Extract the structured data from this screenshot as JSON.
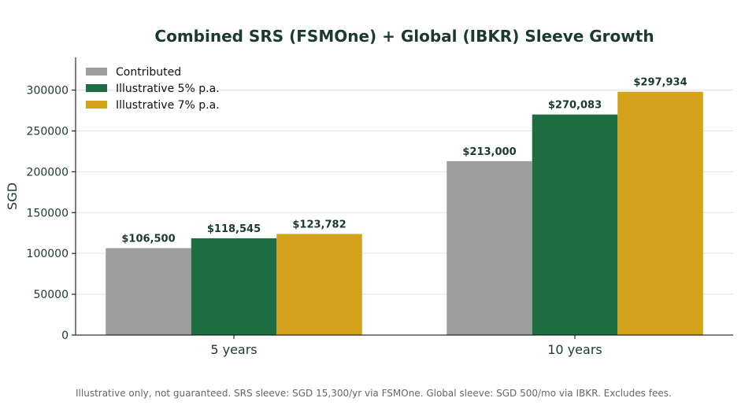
{
  "chart_data": {
    "type": "bar",
    "title": "Combined SRS (FSMOne) + Global (IBKR) Sleeve Growth",
    "xlabel": "",
    "ylabel": "SGD",
    "categories": [
      "5 years",
      "10 years"
    ],
    "ylim": [
      0,
      340000
    ],
    "yticks": [
      0,
      50000,
      100000,
      150000,
      200000,
      250000,
      300000
    ],
    "grid": "horizontal",
    "legend_position": "top-left",
    "series": [
      {
        "name": "Contributed",
        "color": "#9e9e9e",
        "values": [
          106500,
          213000
        ],
        "labels": [
          "$106,500",
          "$213,000"
        ]
      },
      {
        "name": "Illustrative 5% p.a.",
        "color": "#1f6e43",
        "values": [
          118545,
          270083
        ],
        "labels": [
          "$118,545",
          "$270,083"
        ]
      },
      {
        "name": "Illustrative 7% p.a.",
        "color": "#d4a11a",
        "values": [
          123782,
          297934
        ],
        "labels": [
          "$123,782",
          "$297,934"
        ]
      }
    ]
  },
  "footnote": "Illustrative only, not guaranteed. SRS sleeve: SGD 15,300/yr via FSMOne. Global sleeve: SGD 500/mo via IBKR. Excludes fees."
}
